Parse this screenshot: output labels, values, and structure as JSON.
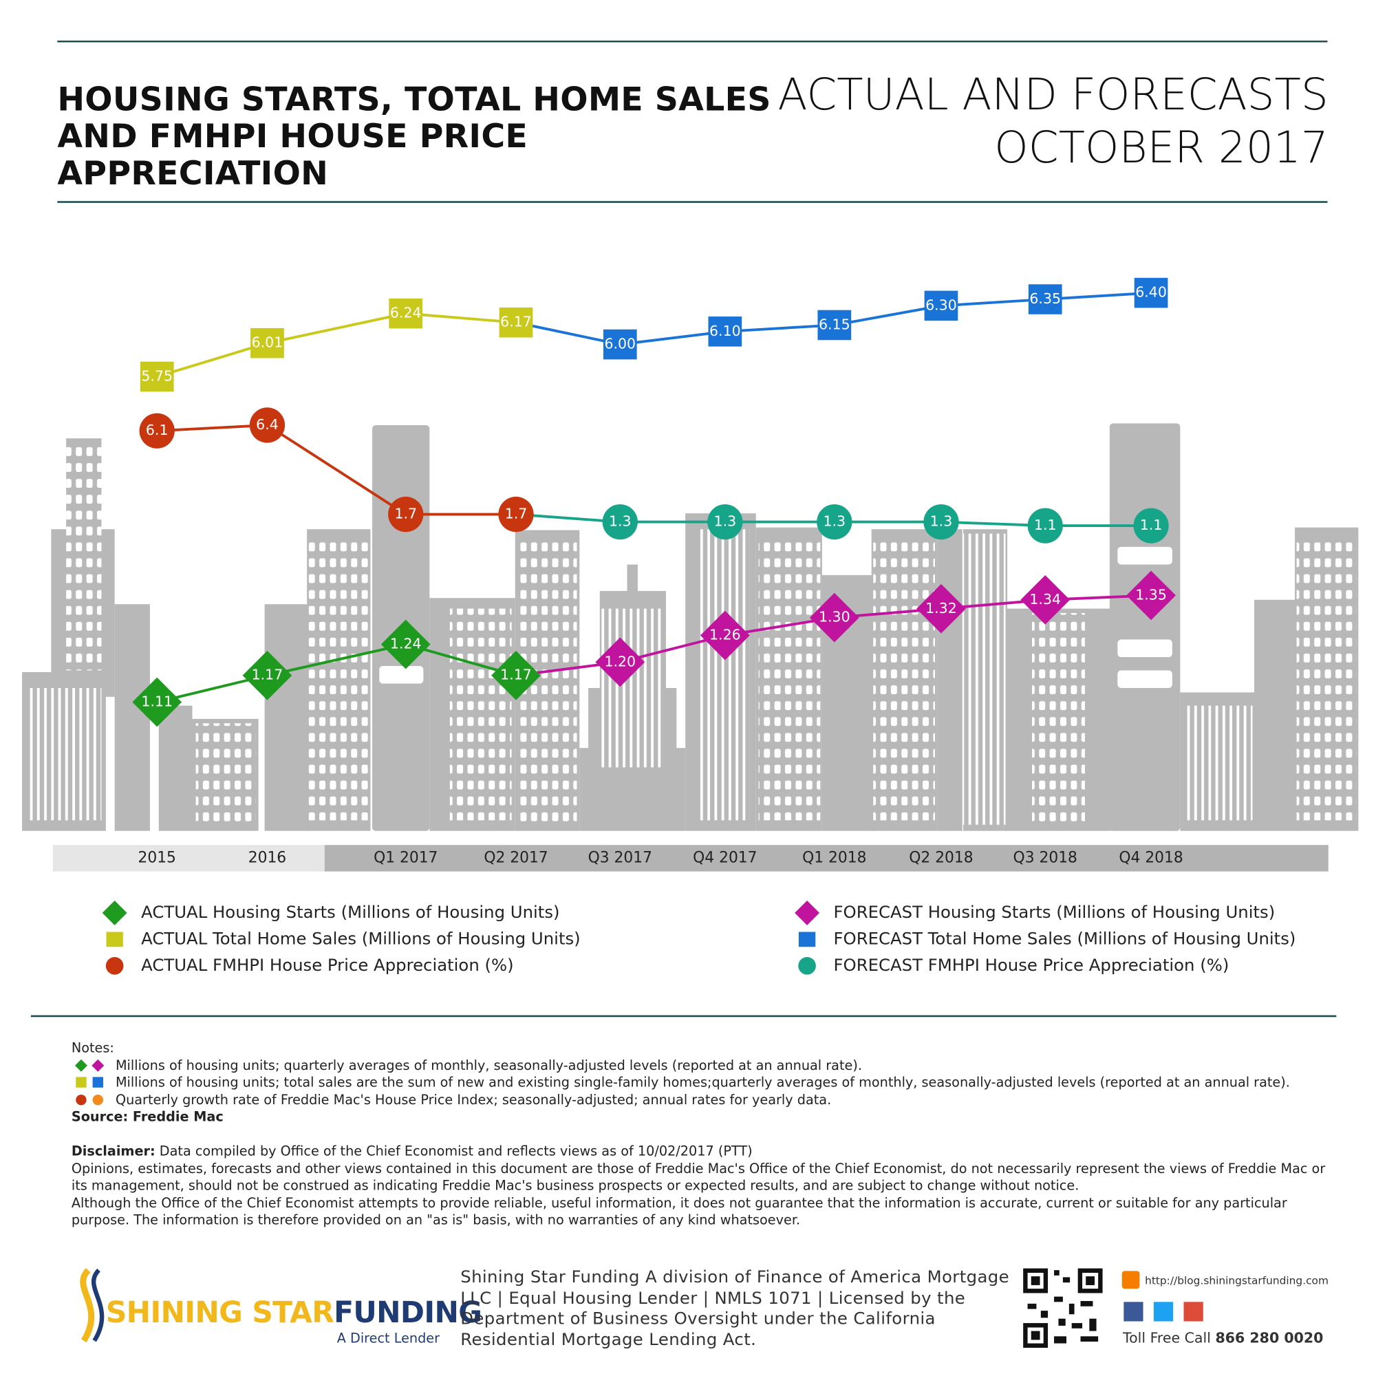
{
  "header": {
    "title": "HOUSING STARTS, TOTAL HOME SALES AND FMHPI HOUSE PRICE APPRECIATION",
    "subtitle_line1": "ACTUAL AND FORECASTS",
    "subtitle_line2": "OCTOBER 2017"
  },
  "chart_data": {
    "type": "line",
    "categories": [
      "2015",
      "2016",
      "Q1 2017",
      "Q2 2017",
      "Q3 2017",
      "Q4 2017",
      "Q1 2018",
      "Q2 2018",
      "Q3 2018",
      "Q4 2018"
    ],
    "series": [
      {
        "name": "ACTUAL Housing Starts (Millions of Housing Units)",
        "color": "#1e9a1e",
        "marker": "diamond",
        "values": [
          1.11,
          1.17,
          1.24,
          1.17,
          null,
          null,
          null,
          null,
          null,
          null
        ],
        "value_labels": [
          "1.11",
          "1.17",
          "1.24",
          "1.17",
          null,
          null,
          null,
          null,
          null,
          null
        ]
      },
      {
        "name": "ACTUAL Total Home Sales (Millions of Housing Units)",
        "color": "#c9c91c",
        "marker": "square",
        "values": [
          5.75,
          6.01,
          6.24,
          6.17,
          null,
          null,
          null,
          null,
          null,
          null
        ],
        "value_labels": [
          "5.75",
          "6.01",
          "6.24",
          "6.17",
          null,
          null,
          null,
          null,
          null,
          null
        ]
      },
      {
        "name": "ACTUAL FMHPI House Price Appreciation (%)",
        "color": "#c8360f",
        "marker": "circle",
        "values": [
          6.1,
          6.4,
          1.7,
          1.7,
          null,
          null,
          null,
          null,
          null,
          null
        ],
        "value_labels": [
          "6.1",
          "6.4",
          "1.7",
          "1.7",
          null,
          null,
          null,
          null,
          null,
          null
        ]
      },
      {
        "name": "FORECAST Housing Starts (Millions of Housing Units)",
        "color": "#c0149e",
        "marker": "diamond",
        "values": [
          null,
          null,
          null,
          null,
          1.2,
          1.26,
          1.3,
          1.32,
          1.34,
          1.35
        ],
        "value_labels": [
          null,
          null,
          null,
          null,
          "1.20",
          "1.26",
          "1.30",
          "1.32",
          "1.34",
          "1.35"
        ]
      },
      {
        "name": "FORECAST Total Home Sales (Millions of Housing Units)",
        "color": "#1a73d6",
        "marker": "square",
        "values": [
          null,
          null,
          null,
          null,
          6.0,
          6.1,
          6.15,
          6.3,
          6.35,
          6.4
        ],
        "value_labels": [
          null,
          null,
          null,
          null,
          "6.00",
          "6.10",
          "6.15",
          "6.30",
          "6.35",
          "6.40"
        ]
      },
      {
        "name": "FORECAST FMHPI House Price Appreciation (%)",
        "color": "#17a58a",
        "marker": "circle",
        "values": [
          null,
          null,
          null,
          null,
          1.3,
          1.3,
          1.3,
          1.3,
          1.1,
          1.1
        ],
        "value_labels": [
          null,
          null,
          null,
          null,
          "1.3",
          "1.3",
          "1.3",
          "1.3",
          "1.1",
          "1.1"
        ]
      }
    ]
  },
  "notes": {
    "heading": "Notes:",
    "items": [
      "Millions of housing units; quarterly averages of monthly, seasonally-adjusted levels (reported at an annual rate).",
      "Millions of housing units; total sales are the sum of new and existing single-family homes;quarterly averages of monthly, seasonally-adjusted levels (reported at an annual rate).",
      "Quarterly growth rate of Freddie Mac's House Price Index; seasonally-adjusted; annual rates for yearly data."
    ],
    "source": "Source: Freddie Mac"
  },
  "disclaimer": {
    "label": "Disclaimer:",
    "lead": "Data compiled by Office of the Chief Economist and reflects views as of 10/02/2017 (PTT)",
    "paragraphs": [
      "Opinions, estimates, forecasts and other views contained in this document are those of Freddie Mac's Office of the Chief Economist, do not necessarily represent the views of Freddie Mac or its management, should not be construed as indicating Freddie Mac's business prospects or expected results, and are subject to change without notice.",
      "Although the Office of the Chief Economist attempts to provide reliable, useful information, it does not guarantee that the information is accurate, current or suitable for any particular purpose. The information is therefore provided on an \"as is\" basis, with no warranties of any kind whatsoever."
    ]
  },
  "footer": {
    "brand_primary": "SHINING STAR",
    "brand_secondary": "FUNDING",
    "tagline": "A Direct Lender",
    "company": "Shining Star Funding A division of Finance of America Mortgage LLC | Equal Housing Lender | NMLS 1071 | Licensed by the Department of Business Oversight under the California Residential Mortgage Lending Act.",
    "url": "http://blog.shiningstarfunding.com",
    "toll_free_label": "Toll Free Call",
    "phone": "866 280 0020"
  }
}
